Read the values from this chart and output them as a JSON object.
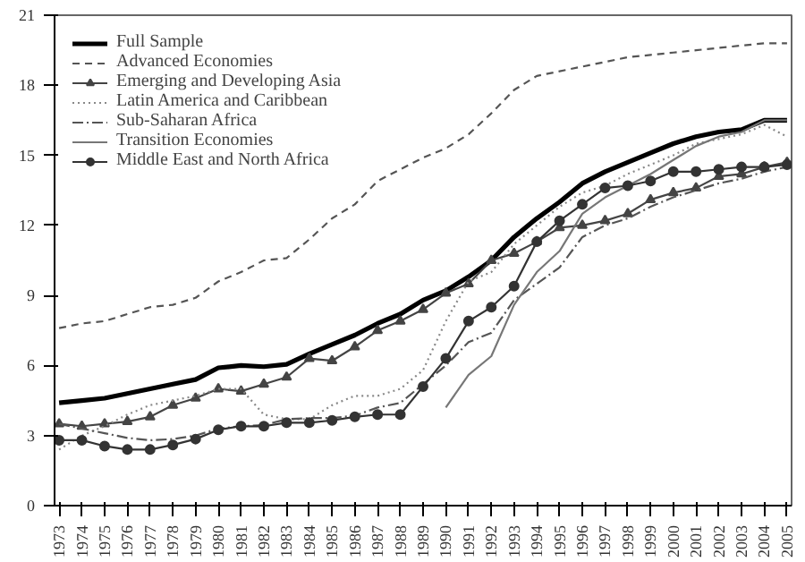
{
  "chart_data": {
    "type": "line",
    "x": [
      1973,
      1974,
      1975,
      1976,
      1977,
      1978,
      1979,
      1980,
      1981,
      1982,
      1983,
      1984,
      1985,
      1986,
      1987,
      1988,
      1989,
      1990,
      1991,
      1992,
      1993,
      1994,
      1995,
      1996,
      1997,
      1998,
      1999,
      2000,
      2001,
      2002,
      2003,
      2004,
      2005
    ],
    "xlim": [
      1972.8,
      2005.2
    ],
    "xticks": [
      1973,
      1974,
      1975,
      1976,
      1977,
      1978,
      1979,
      1980,
      1981,
      1982,
      1983,
      1984,
      1985,
      1986,
      1987,
      1988,
      1989,
      1990,
      1991,
      1992,
      1993,
      1994,
      1995,
      1996,
      1997,
      1998,
      1999,
      2000,
      2001,
      2002,
      2003,
      2004,
      2005
    ],
    "ylim": [
      0,
      21
    ],
    "yticks": [
      0,
      3,
      6,
      9,
      12,
      15,
      18,
      21
    ],
    "grid": false,
    "legend": "top left",
    "series": [
      {
        "name": "Full Sample",
        "color": "#000000",
        "line_style": "solid",
        "marker": "none",
        "values": [
          4.4,
          4.5,
          4.6,
          4.8,
          5.0,
          5.2,
          5.4,
          5.9,
          6.0,
          5.95,
          6.05,
          6.5,
          6.9,
          7.3,
          7.8,
          8.2,
          8.8,
          9.2,
          9.8,
          10.5,
          11.5,
          12.3,
          13.0,
          13.8,
          14.3,
          14.7,
          15.1,
          15.5,
          15.8,
          16.0,
          16.1,
          16.5,
          16.5
        ]
      },
      {
        "name": "Advanced Economies",
        "color": "#555555",
        "line_style": "dashed",
        "marker": "none",
        "values": [
          7.6,
          7.8,
          7.9,
          8.2,
          8.5,
          8.6,
          8.9,
          9.6,
          10.0,
          10.5,
          10.6,
          11.4,
          12.3,
          12.9,
          13.9,
          14.4,
          14.9,
          15.3,
          15.9,
          16.8,
          17.8,
          18.4,
          18.6,
          18.8,
          19.0,
          19.2,
          19.3,
          19.4,
          19.5,
          19.6,
          19.7,
          19.8,
          19.8
        ]
      },
      {
        "name": "Emerging and Developing Asia",
        "color": "#444444",
        "line_style": "solid",
        "marker": "triangle",
        "values": [
          3.5,
          3.4,
          3.5,
          3.6,
          3.8,
          4.3,
          4.6,
          5.0,
          4.9,
          5.2,
          5.5,
          6.3,
          6.2,
          6.8,
          7.5,
          7.9,
          8.4,
          9.1,
          9.5,
          10.5,
          10.8,
          11.3,
          11.9,
          12.0,
          12.2,
          12.5,
          13.1,
          13.4,
          13.6,
          14.1,
          14.2,
          14.5,
          14.7
        ]
      },
      {
        "name": "Latin America and Caribbean",
        "color": "#888888",
        "line_style": "dotted",
        "marker": "none",
        "values": [
          2.4,
          3.0,
          3.4,
          3.9,
          4.3,
          4.5,
          4.7,
          5.0,
          5.0,
          3.9,
          3.7,
          3.7,
          4.3,
          4.7,
          4.7,
          5.0,
          5.8,
          7.9,
          9.6,
          10.0,
          11.2,
          12.0,
          12.8,
          13.4,
          13.7,
          14.2,
          14.6,
          15.0,
          15.5,
          15.7,
          15.9,
          16.3,
          15.8
        ]
      },
      {
        "name": "Sub-Saharan Africa",
        "color": "#555555",
        "line_style": "dashdot",
        "marker": "none",
        "values": [
          3.5,
          3.3,
          3.1,
          2.9,
          2.8,
          2.85,
          3.0,
          3.3,
          3.4,
          3.45,
          3.7,
          3.75,
          3.75,
          3.85,
          4.2,
          4.4,
          5.2,
          6.0,
          7.0,
          7.4,
          8.8,
          9.5,
          10.2,
          11.5,
          12.0,
          12.3,
          12.8,
          13.2,
          13.5,
          13.8,
          14.0,
          14.3,
          14.5
        ]
      },
      {
        "name": "Transition Economies",
        "color": "#777777",
        "line_style": "solid",
        "marker": "none",
        "values": [
          null,
          null,
          null,
          null,
          null,
          null,
          null,
          null,
          null,
          null,
          null,
          null,
          null,
          null,
          null,
          null,
          null,
          4.2,
          5.6,
          6.4,
          8.6,
          10.0,
          10.9,
          12.5,
          13.2,
          13.7,
          14.2,
          14.8,
          15.4,
          15.8,
          16.0,
          16.5,
          16.5
        ]
      },
      {
        "name": "Middle East and North Africa",
        "color": "#333333",
        "line_style": "solid",
        "marker": "circle",
        "values": [
          2.8,
          2.8,
          2.55,
          2.4,
          2.4,
          2.6,
          2.85,
          3.25,
          3.4,
          3.4,
          3.55,
          3.55,
          3.65,
          3.8,
          3.9,
          3.9,
          5.1,
          6.3,
          7.9,
          8.5,
          9.4,
          11.3,
          12.2,
          12.9,
          13.6,
          13.7,
          13.9,
          14.3,
          14.3,
          14.4,
          14.5,
          14.5,
          14.6
        ]
      }
    ]
  }
}
